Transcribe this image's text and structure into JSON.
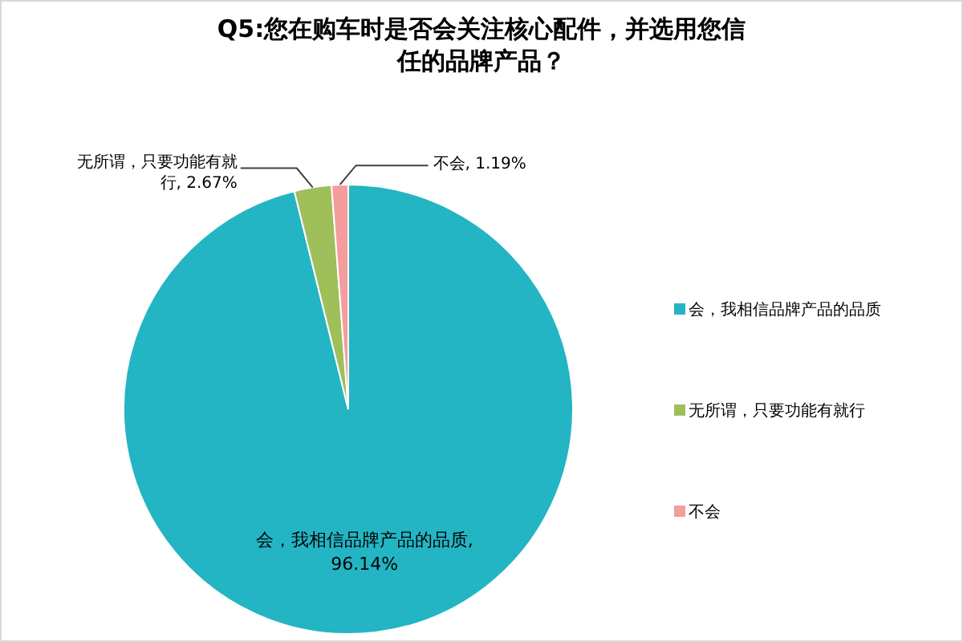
{
  "chart_data": {
    "type": "pie",
    "title": "Q5:您在购车时是否会关注核心配件，并选用您信任的品牌产品？",
    "categories": [
      "会，我相信品牌产品的品质",
      "无所谓，只要功能有就行",
      "不会"
    ],
    "values": [
      96.14,
      2.67,
      1.19
    ],
    "value_labels": [
      "会，我相信品牌产品的品质, 96.14%",
      "无所谓，只要功能有就行, 2.67%",
      "不会, 1.19%"
    ],
    "colors": [
      "#23b5c4",
      "#9ebf5a",
      "#f59c9c"
    ],
    "legend": "right"
  }
}
